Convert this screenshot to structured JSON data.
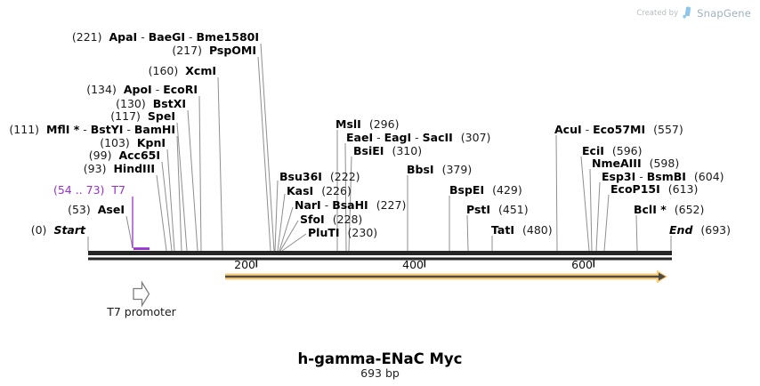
{
  "watermark": {
    "created_by": "Created by",
    "brand": "SnapGene"
  },
  "map": {
    "footer": {
      "title": "h-gamma-ENaC Myc",
      "length": "693 bp"
    },
    "axis_ticks": [
      "200",
      "400",
      "600"
    ],
    "promoter": {
      "label": "T7 promoter"
    },
    "t7_region": {
      "num": "(54 .. 73)",
      "names": [
        "T7"
      ]
    },
    "sites_left": [
      {
        "num": "(221)",
        "names": [
          "ApaI",
          "BaeGI",
          "Bme1580I"
        ]
      },
      {
        "num": "(217)",
        "names": [
          "PspOMI"
        ]
      },
      {
        "num": "(160)",
        "names": [
          "XcmI"
        ]
      },
      {
        "num": "(134)",
        "names": [
          "ApoI",
          "EcoRI"
        ]
      },
      {
        "num": "(130)",
        "names": [
          "BstXI"
        ]
      },
      {
        "num": "(117)",
        "names": [
          "SpeI"
        ]
      },
      {
        "num": "(111)",
        "names": [
          "MflI *",
          "BstYI",
          "BamHI"
        ]
      },
      {
        "num": "(103)",
        "names": [
          "KpnI"
        ]
      },
      {
        "num": "(99)",
        "names": [
          "Acc65I"
        ]
      },
      {
        "num": "(93)",
        "names": [
          "HindIII"
        ]
      },
      {
        "num": "(53)",
        "names": [
          "AseI"
        ]
      },
      {
        "num": "(0)",
        "names": [
          "Start"
        ]
      }
    ],
    "sites_right": [
      {
        "names": [
          "Bsu36I"
        ],
        "num": "(222)"
      },
      {
        "names": [
          "KasI"
        ],
        "num": "(226)"
      },
      {
        "names": [
          "NarI",
          "BsaHI"
        ],
        "num": "(227)"
      },
      {
        "names": [
          "SfoI"
        ],
        "num": "(228)"
      },
      {
        "names": [
          "PluTI"
        ],
        "num": "(230)"
      },
      {
        "names": [
          "MslI"
        ],
        "num": "(296)"
      },
      {
        "names": [
          "EaeI",
          "EagI",
          "SacII"
        ],
        "num": "(307)"
      },
      {
        "names": [
          "BsiEI"
        ],
        "num": "(310)"
      },
      {
        "names": [
          "BbsI"
        ],
        "num": "(379)"
      },
      {
        "names": [
          "BspEI"
        ],
        "num": "(429)"
      },
      {
        "names": [
          "PstI"
        ],
        "num": "(451)"
      },
      {
        "names": [
          "TatI"
        ],
        "num": "(480)"
      },
      {
        "names": [
          "AcuI",
          "Eco57MI"
        ],
        "num": "(557)"
      },
      {
        "names": [
          "EciI"
        ],
        "num": "(596)"
      },
      {
        "names": [
          "NmeAIII"
        ],
        "num": "(598)"
      },
      {
        "names": [
          "Esp3I",
          "BsmBI"
        ],
        "num": "(604)"
      },
      {
        "names": [
          "EcoP15I"
        ],
        "num": "(613)"
      },
      {
        "names": [
          "BclI *"
        ],
        "num": "(652)"
      },
      {
        "names": [
          "End"
        ],
        "num": "(693)"
      }
    ]
  }
}
